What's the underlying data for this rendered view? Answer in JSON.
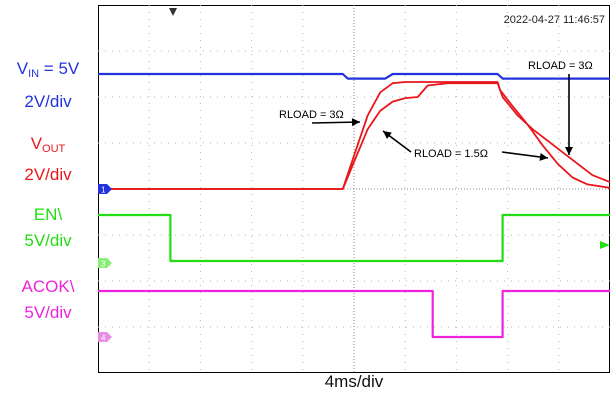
{
  "timestamp": "2022-04-27 11:46:57",
  "time_scale": "4ms/div",
  "channel_labels": [
    {
      "name": "V",
      "sub": "IN",
      "tail": " = 5V",
      "scale": "2V/div",
      "color": "#2233dd"
    },
    {
      "name": "V",
      "sub": "OUT",
      "tail": "",
      "scale": "2V/div",
      "color": "#e8171c"
    },
    {
      "name": "EN\\",
      "sub": "",
      "tail": "",
      "scale": "5V/div",
      "color": "#22dd11"
    },
    {
      "name": "ACOK\\",
      "sub": "",
      "tail": "",
      "scale": "5V/div",
      "color": "#ee22dd"
    }
  ],
  "markers": {
    "ch1": "1",
    "ch3": "3",
    "ch4": "4"
  },
  "annotations": {
    "rload_3_left": "RLOAD = 3Ω",
    "rload_1p5": "RLOAD = 1.5Ω",
    "rload_3_right": "RLOAD = 3Ω"
  },
  "chart_data": {
    "type": "line",
    "x_unit": "ms",
    "xlim": [
      0,
      20.5
    ],
    "series": [
      {
        "name": "VIN",
        "color": "#2233dd",
        "scale": "2V/div",
        "x": [
          0,
          9.8,
          10.0,
          11.5,
          11.8,
          16.0,
          16.2,
          20.5
        ],
        "y": [
          5.0,
          5.0,
          4.8,
          4.8,
          5.0,
          5.0,
          4.8,
          4.8
        ]
      },
      {
        "name": "VOUT (RLOAD = 3Ω)",
        "color": "#e8171c",
        "scale": "2V/div",
        "x": [
          0,
          9.8,
          10.3,
          10.8,
          11.3,
          11.8,
          12.3,
          13.0,
          14.0,
          16.0,
          16.1,
          16.6,
          17.2,
          17.8,
          18.4,
          19.0,
          19.6,
          20.5
        ],
        "y": [
          0,
          0,
          1.6,
          3.2,
          4.2,
          4.6,
          4.65,
          4.65,
          4.65,
          4.65,
          4.3,
          3.6,
          2.8,
          1.9,
          1.1,
          0.5,
          0.2,
          0.05
        ]
      },
      {
        "name": "VOUT (RLOAD = 1.5Ω)",
        "color": "#e8171c",
        "scale": "2V/div",
        "x": [
          0,
          9.8,
          10.3,
          10.8,
          11.3,
          11.8,
          12.3,
          12.8,
          13.2,
          14.0,
          16.0,
          16.2,
          16.8,
          17.4,
          18.0,
          18.6,
          19.2,
          19.8,
          20.5
        ],
        "y": [
          0,
          0,
          1.3,
          2.6,
          3.4,
          3.8,
          3.95,
          4.0,
          4.5,
          4.6,
          4.6,
          4.0,
          3.2,
          2.6,
          2.1,
          1.6,
          1.1,
          0.6,
          0.3
        ]
      },
      {
        "name": "EN\\",
        "color": "#22dd11",
        "scale": "5V/div",
        "x": [
          0,
          2.9,
          2.9,
          16.2,
          16.2,
          20.5
        ],
        "y": [
          5,
          5,
          0,
          0,
          5,
          5
        ]
      },
      {
        "name": "ACOK\\",
        "color": "#ee22dd",
        "scale": "5V/div",
        "x": [
          0,
          13.4,
          13.4,
          16.2,
          16.2,
          20.5
        ],
        "y": [
          5,
          5,
          0,
          0,
          5,
          5
        ]
      }
    ]
  }
}
